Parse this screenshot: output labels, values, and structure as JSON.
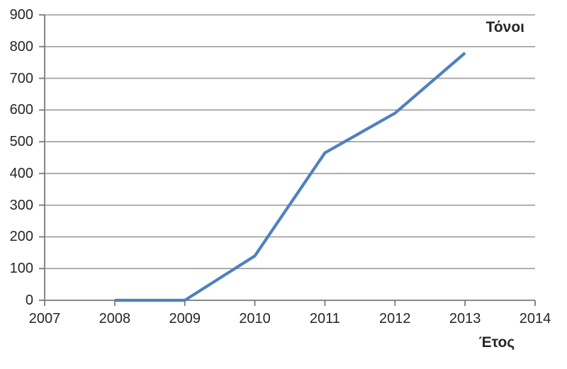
{
  "chart_data": {
    "type": "line",
    "title": "",
    "unit_label": "Τόνοι",
    "xlabel": "Έτος",
    "ylabel": "",
    "x": [
      2008,
      2009,
      2010,
      2011,
      2012,
      2013
    ],
    "values": [
      0,
      0,
      140,
      465,
      590,
      780
    ],
    "series": [
      {
        "name": "Τόνοι",
        "values": [
          0,
          0,
          140,
          465,
          590,
          780
        ]
      }
    ],
    "xlim": [
      2007,
      2014
    ],
    "ylim": [
      0,
      900
    ],
    "x_ticks": [
      2007,
      2008,
      2009,
      2010,
      2011,
      2012,
      2013,
      2014
    ],
    "y_ticks": [
      0,
      100,
      200,
      300,
      400,
      500,
      600,
      700,
      800,
      900
    ],
    "grid": true,
    "legend_position": "none",
    "line_color": "#4F81BD"
  },
  "style": {
    "grid_color": "#9b9b9b",
    "axis_color": "#7a7a7a",
    "text_color": "#262626",
    "background": "#ffffff"
  }
}
